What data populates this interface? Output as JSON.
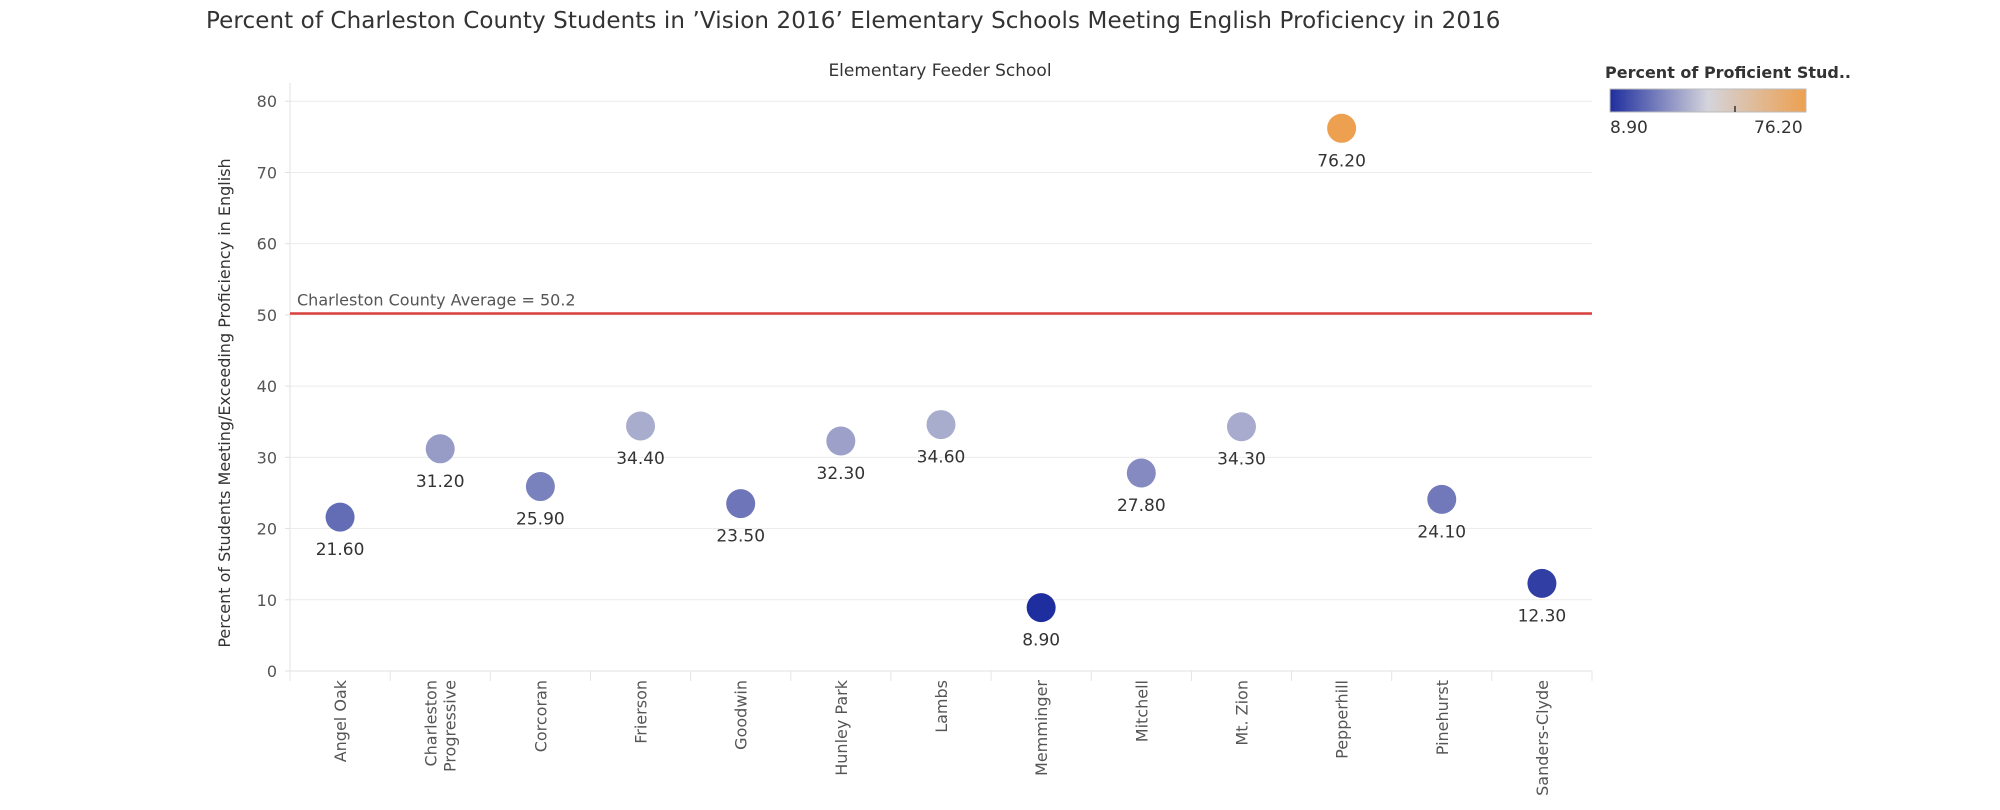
{
  "chart_data": {
    "type": "scatter",
    "title": "Percent of Charleston County Students in ’Vision 2016’ Elementary Schools Meeting English Proficiency in 2016",
    "xlabel": "Elementary Feeder School",
    "ylabel": "Percent of Students Meeting/Exceeding Proficiency in English",
    "categories": [
      "Angel Oak",
      "Charleston Progressive",
      "Corcoran",
      "Frierson",
      "Goodwin",
      "Hunley Park",
      "Lambs",
      "Memminger",
      "Mitchell",
      "Mt. Zion",
      "Pepperhill",
      "Pinehurst",
      "Sanders-Clyde"
    ],
    "values": [
      21.6,
      31.2,
      25.9,
      34.4,
      23.5,
      32.3,
      34.6,
      8.9,
      27.8,
      34.3,
      76.2,
      24.1,
      12.3
    ],
    "value_labels": [
      "21.60",
      "31.20",
      "25.90",
      "34.40",
      "23.50",
      "32.30",
      "34.60",
      "8.90",
      "27.80",
      "34.30",
      "76.20",
      "24.10",
      "12.30"
    ],
    "ylim": [
      0,
      82
    ],
    "yticks": [
      0,
      10,
      20,
      30,
      40,
      50,
      60,
      70,
      80
    ],
    "grid": true,
    "reference_line": {
      "value": 50.2,
      "label": "Charleston County Average = 50.2",
      "color": "#d9413f"
    },
    "color_legend": {
      "title": "Percent of Proficient Stud..",
      "min_label": "8.90",
      "max_label": "76.20",
      "min": 8.9,
      "max": 76.2,
      "colors": [
        "#1f2e9e",
        "#d4d4dc",
        "#eda050"
      ],
      "placement": "top-right"
    }
  }
}
